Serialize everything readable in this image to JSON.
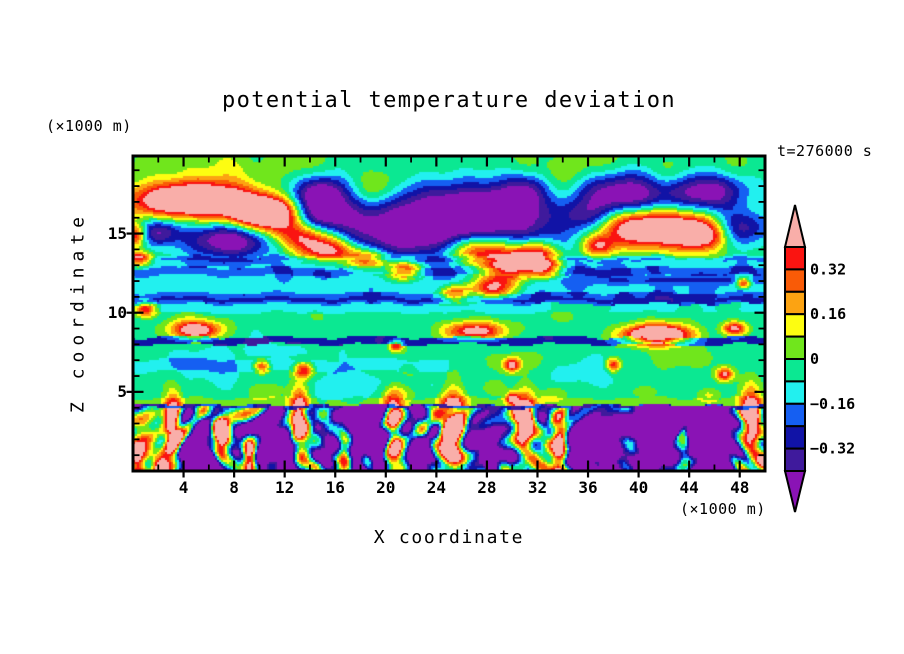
{
  "page": {
    "background": "#FFFFFF",
    "text_color": "#000000"
  },
  "chart_data": {
    "type": "heatmap",
    "title": "potential temperature deviation",
    "time_label": "t=276000 s",
    "xlabel": "X coordinate",
    "ylabel": "Z coordinate",
    "x_unit_label": "(×1000 m)",
    "y_unit_label": "(×1000 m)",
    "xlim": [
      0,
      50
    ],
    "zlim": [
      0,
      19.9
    ],
    "x_major_ticks": [
      4,
      8,
      12,
      16,
      20,
      24,
      28,
      32,
      36,
      40,
      44,
      48
    ],
    "x_minor_ticks": [
      2,
      6,
      10,
      14,
      18,
      22,
      26,
      30,
      34,
      38,
      42,
      46
    ],
    "z_major_ticks": [
      5,
      10,
      15
    ],
    "z_minor_ticks": [
      1,
      2,
      3,
      4,
      6,
      7,
      8,
      9,
      11,
      12,
      13,
      14,
      16,
      17,
      18,
      19
    ],
    "contour_interval": 0.08,
    "levels": [
      -0.4,
      -0.32,
      -0.24,
      -0.16,
      -0.08,
      0,
      0.08,
      0.16,
      0.24,
      0.32,
      0.4
    ],
    "palette_low_to_high": [
      "#8A13B5",
      "#3F1A9C",
      "#1113A6",
      "#155FF2",
      "#22F0EF",
      "#0BE892",
      "#70E61C",
      "#FDFD11",
      "#FCA312",
      "#F95B07",
      "#FA1411",
      "#F9AEA9"
    ],
    "palette_names_low_to_high": [
      "purple",
      "indigo",
      "navy",
      "blue",
      "cyan",
      "spring-green",
      "chartreuse",
      "yellow",
      "orange",
      "orange-red",
      "red",
      "pink"
    ],
    "colorbar": {
      "segment_colors_top_to_bottom": [
        "#FA1411",
        "#F95B07",
        "#FCA312",
        "#FDFD11",
        "#70E61C",
        "#0BE892",
        "#22F0EF",
        "#155FF2",
        "#1113A6",
        "#3F1A9C"
      ],
      "over_arrow_color": "#F9AEA9",
      "under_arrow_color": "#8A13B5",
      "tick_labels": [
        "0.32",
        "0.16",
        "0",
        "−0.16",
        "−0.32"
      ],
      "label_boundary_indices": [
        1,
        3,
        5,
        7,
        9
      ]
    },
    "features": [
      "warm pink/red intrusion descending from upper-left (x≈1-13, z≈14-19 km)",
      "large cold navy/purple pool spanning x≈13-36, z≈13.5-17.5 km with cyan fringe",
      "upper-right cold lobes with a red-rimmed pink warm blob at x≈36-47, z≈14-18 km",
      "yellow-orange buoyant plumes along the top near x≈19 and x≈33",
      "layered horizontal cyan/blue bands at z≈10-13.5 km with scattered pink warm patches",
      "thin dark navy stable layer at z≈8.0-8.5 km, purple segment near x≈27",
      "spring-green mixed layer with cyan patches and small warm spots, z≈4.6-10 km",
      "turbulent convective layer below z≈4.2 km: purple/navy vortices and rising pink thermals fringed red-orange-yellow"
    ],
    "field_model": {
      "x_range": [
        0,
        50
      ],
      "z_range": [
        0,
        19.9
      ],
      "upper_base": {
        "v0": -0.045,
        "v1": -0.015,
        "z_from": 15,
        "z_span": 4.5
      },
      "bands": [
        [
          13.42,
          13.55,
          -0.12
        ],
        [
          13.25,
          13.42,
          -0.165
        ],
        [
          12.85,
          13.25,
          -0.12
        ],
        [
          12.35,
          12.85,
          -0.205
        ],
        [
          11.25,
          12.35,
          -0.125
        ],
        [
          10.72,
          10.95,
          -0.275
        ],
        [
          10.55,
          11.25,
          -0.215
        ],
        [
          10.0,
          10.55,
          -0.12,
          33,
          -0.055
        ],
        [
          9.0,
          10.0,
          -0.05
        ],
        [
          8.45,
          9.0,
          -0.055
        ],
        [
          8.0,
          8.45,
          -0.3
        ],
        [
          7.05,
          8.0,
          -0.05
        ],
        [
          6.3,
          7.05,
          -0.125,
          25,
          -0.055
        ],
        [
          4.6,
          6.3,
          -0.05
        ],
        [
          3.9,
          4.6,
          0.03
        ]
      ],
      "interface": {
        "z0": 4.15,
        "a1": 0.06,
        "f1": 1.4,
        "a2": 0.04,
        "f2": 0.37
      },
      "turbulence": {
        "base": -0.2,
        "amp": 0.33
      },
      "blobs": [
        [
          5.0,
          17.1,
          3.6,
          0.78,
          0.85,
          0
        ],
        [
          10.5,
          16.5,
          2.0,
          0.6,
          0.6,
          0
        ],
        [
          11.0,
          15.8,
          2.0,
          0.65,
          0.5,
          0
        ],
        [
          13.5,
          14.8,
          1.8,
          0.6,
          0.55,
          0
        ],
        [
          15.5,
          13.9,
          1.6,
          0.55,
          0.58,
          0
        ],
        [
          18.5,
          13.3,
          1.1,
          0.5,
          0.5,
          0
        ],
        [
          21.5,
          12.7,
          1.0,
          0.5,
          0.55,
          0
        ],
        [
          27.5,
          13.9,
          1.9,
          0.75,
          0.62,
          0
        ],
        [
          29.8,
          12.9,
          1.4,
          0.6,
          0.6,
          0
        ],
        [
          28.5,
          11.6,
          1.2,
          0.5,
          0.55,
          0
        ],
        [
          25.5,
          11.2,
          0.8,
          0.4,
          0.45,
          0
        ],
        [
          31.8,
          13.7,
          1.3,
          0.6,
          0.55,
          0
        ],
        [
          32.5,
          12.8,
          1.0,
          0.45,
          0.5,
          0
        ],
        [
          40.5,
          15.4,
          3.1,
          0.9,
          0.78,
          0
        ],
        [
          45.0,
          14.9,
          1.7,
          0.7,
          0.55,
          0
        ],
        [
          36.8,
          14.2,
          0.9,
          0.45,
          0.4,
          0
        ],
        [
          0.2,
          14.9,
          0.6,
          0.5,
          0.5,
          0
        ],
        [
          0.5,
          13.4,
          0.7,
          0.3,
          0.5,
          0
        ],
        [
          1.0,
          10.2,
          0.6,
          0.3,
          0.5,
          0
        ],
        [
          5.0,
          8.9,
          1.4,
          0.4,
          0.6,
          0
        ],
        [
          27.0,
          8.8,
          1.7,
          0.45,
          0.55,
          0
        ],
        [
          41.5,
          8.6,
          1.8,
          0.45,
          0.9,
          0
        ],
        [
          47.6,
          9.0,
          0.7,
          0.3,
          0.5,
          0
        ],
        [
          48.3,
          11.9,
          0.4,
          0.25,
          0.55,
          0
        ],
        [
          13.5,
          6.4,
          0.55,
          0.35,
          0.5,
          0
        ],
        [
          30.0,
          6.7,
          0.45,
          0.3,
          0.48,
          0
        ],
        [
          46.8,
          6.1,
          0.5,
          0.3,
          0.5,
          0
        ],
        [
          20.8,
          7.9,
          0.4,
          0.25,
          0.42,
          0
        ],
        [
          30.0,
          4.6,
          0.35,
          0.25,
          0.5,
          0
        ],
        [
          10.2,
          6.6,
          0.45,
          0.3,
          0.45,
          0
        ],
        [
          38.0,
          6.7,
          0.4,
          0.3,
          0.45,
          0
        ],
        [
          19.3,
          17.6,
          1.3,
          0.9,
          0.22,
          0
        ],
        [
          33.5,
          17.7,
          1.2,
          0.9,
          0.24,
          0
        ],
        [
          7.5,
          19.3,
          1.2,
          0.7,
          0.08,
          0
        ],
        [
          42.5,
          18.8,
          1.0,
          0.7,
          0.14,
          0
        ],
        [
          10.5,
          5.1,
          0.9,
          0.4,
          0.13,
          0
        ],
        [
          21.0,
          4.9,
          0.8,
          0.35,
          0.13,
          0
        ],
        [
          28.5,
          5.2,
          0.8,
          0.35,
          0.12,
          0
        ],
        [
          33.5,
          4.9,
          0.7,
          0.35,
          0.12,
          0
        ],
        [
          40.5,
          5.0,
          0.8,
          0.35,
          0.13,
          0
        ],
        [
          45.5,
          4.8,
          0.7,
          0.3,
          0.12,
          0
        ],
        [
          13.0,
          19.3,
          1.5,
          0.7,
          0.06,
          0
        ],
        [
          5.0,
          19.0,
          2.5,
          1.0,
          0.07,
          0
        ],
        [
          36.5,
          19.2,
          2.0,
          0.8,
          0.07,
          0
        ],
        [
          47.0,
          18.8,
          1.5,
          0.8,
          0.07,
          0
        ],
        [
          31.0,
          19.4,
          1.3,
          0.6,
          0.06,
          0
        ],
        [
          30.0,
          7.0,
          2.5,
          0.5,
          0.075,
          0
        ],
        [
          43.0,
          7.0,
          3.0,
          0.55,
          0.075,
          0
        ],
        [
          4.0,
          9.6,
          1.2,
          0.4,
          0.07,
          0
        ],
        [
          15.0,
          9.8,
          1.5,
          0.4,
          0.06,
          0
        ],
        [
          34.0,
          9.7,
          1.4,
          0.4,
          0.06,
          0
        ],
        [
          22.0,
          6.2,
          1.6,
          0.5,
          0.065,
          0
        ],
        [
          6.0,
          6.6,
          2.0,
          0.7,
          -0.09,
          0
        ],
        [
          17.0,
          5.6,
          2.5,
          0.8,
          -0.08,
          0
        ],
        [
          11.0,
          7.6,
          1.8,
          0.5,
          -0.07,
          0
        ],
        [
          37.0,
          6.3,
          2.6,
          0.8,
          -0.07,
          0
        ],
        [
          25.0,
          5.4,
          1.5,
          0.5,
          -0.07,
          0
        ],
        [
          24.0,
          15.5,
          7.5,
          1.6,
          -0.55,
          0
        ],
        [
          28.5,
          16.8,
          3.2,
          0.9,
          -0.3,
          0
        ],
        [
          14.5,
          16.6,
          1.6,
          0.9,
          -0.45,
          0
        ],
        [
          15.0,
          17.8,
          1.3,
          0.6,
          -0.25,
          0
        ],
        [
          7.5,
          14.6,
          2.3,
          0.75,
          -0.45,
          0
        ],
        [
          2.0,
          15.1,
          1.2,
          0.6,
          -0.35,
          0
        ],
        [
          39.0,
          17.4,
          2.5,
          1.0,
          -0.5,
          0
        ],
        [
          45.5,
          17.7,
          2.1,
          0.9,
          -0.46,
          0
        ],
        [
          47.8,
          15.3,
          1.5,
          0.8,
          -0.4,
          0
        ],
        [
          36.0,
          16.0,
          1.3,
          0.7,
          -0.28,
          0
        ],
        [
          31.5,
          17.9,
          1.6,
          0.7,
          -0.25,
          0
        ],
        [
          26.8,
          8.25,
          1.5,
          0.3,
          -0.15,
          0
        ],
        [
          44.0,
          12.05,
          7.0,
          0.15,
          -0.12,
          0
        ],
        [
          3.2,
          2.6,
          0.5,
          1.3,
          1.0,
          0
        ],
        [
          7.0,
          2.3,
          0.45,
          1.1,
          0.95,
          1
        ],
        [
          9.2,
          1.0,
          0.4,
          0.9,
          0.9,
          1
        ],
        [
          13.2,
          2.6,
          0.5,
          1.5,
          1.0,
          0
        ],
        [
          16.8,
          1.4,
          0.45,
          1.0,
          0.9,
          1
        ],
        [
          20.6,
          2.4,
          0.55,
          1.4,
          1.0,
          0
        ],
        [
          25.3,
          2.6,
          0.7,
          1.5,
          1.05,
          0
        ],
        [
          31.0,
          2.8,
          0.6,
          1.3,
          1.0,
          0
        ],
        [
          33.8,
          1.6,
          0.45,
          1.2,
          0.95,
          1
        ],
        [
          39.5,
          1.2,
          0.7,
          0.5,
          0.45,
          1
        ],
        [
          43.6,
          1.7,
          0.45,
          1.1,
          0.9,
          1
        ],
        [
          48.9,
          2.8,
          0.6,
          1.4,
          0.95,
          0
        ],
        [
          5.2,
          0.9,
          1.2,
          1.0,
          -0.8,
          1
        ],
        [
          11.2,
          1.6,
          1.1,
          1.2,
          -0.85,
          1
        ],
        [
          15.0,
          0.8,
          0.8,
          0.8,
          -0.7,
          1
        ],
        [
          18.6,
          2.6,
          1.4,
          1.5,
          -0.9,
          1
        ],
        [
          22.5,
          0.8,
          0.8,
          0.8,
          -0.7,
          1
        ],
        [
          28.0,
          1.2,
          1.2,
          1.0,
          -0.75,
          1
        ],
        [
          36.5,
          1.5,
          1.3,
          1.3,
          -0.8,
          1
        ],
        [
          41.5,
          2.0,
          2.3,
          1.6,
          -0.8,
          1
        ],
        [
          44.5,
          3.3,
          1.8,
          0.9,
          -0.6,
          1
        ],
        [
          46.3,
          1.2,
          1.2,
          1.2,
          -0.7,
          1
        ],
        [
          0.7,
          1.4,
          0.9,
          1.6,
          0.45,
          1
        ],
        [
          2.2,
          0.6,
          0.8,
          0.8,
          0.3,
          1
        ],
        [
          27.0,
          0.7,
          0.9,
          0.5,
          0.5,
          1
        ],
        [
          49.5,
          0.4,
          0.8,
          0.5,
          0.5,
          1
        ],
        [
          2.0,
          0.3,
          0.5,
          0.4,
          0.5,
          1
        ],
        [
          21.5,
          0.3,
          0.6,
          0.4,
          0.55,
          1
        ],
        [
          30.5,
          0.3,
          0.5,
          0.35,
          0.5,
          1
        ],
        [
          14.5,
          0.2,
          0.4,
          0.3,
          0.45,
          1
        ]
      ]
    }
  }
}
